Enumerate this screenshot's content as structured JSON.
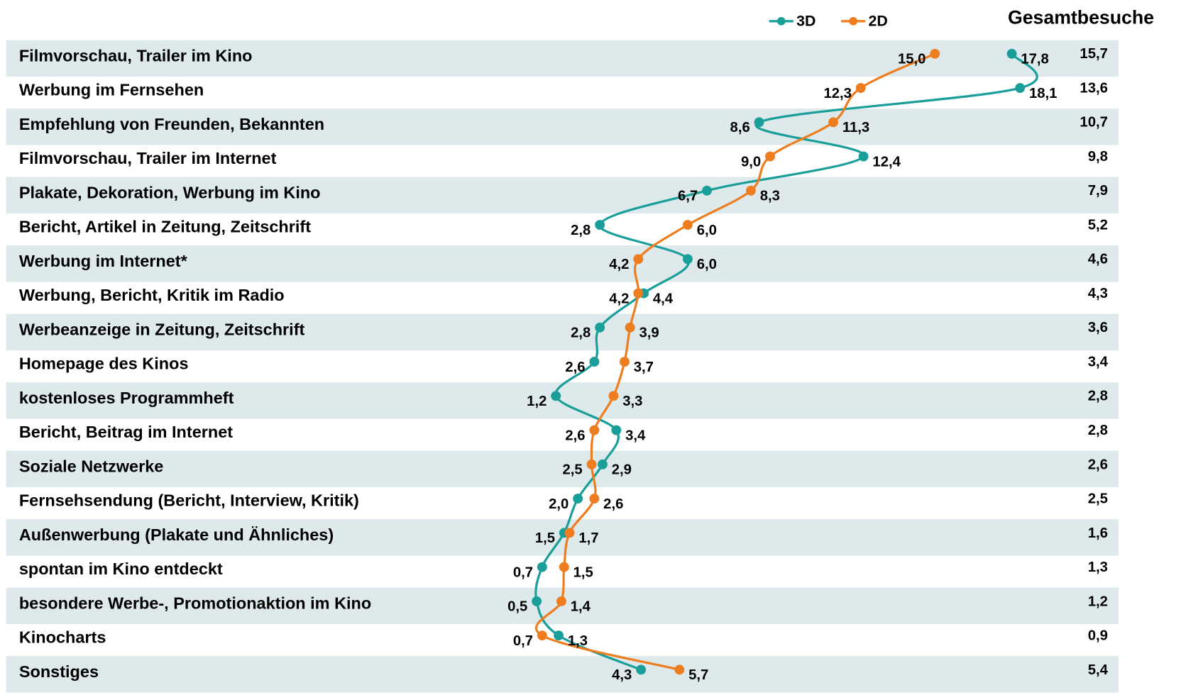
{
  "chart_data": {
    "type": "line",
    "categories": [
      "Filmvorschau, Trailer im Kino",
      "Werbung im Fernsehen",
      "Empfehlung von Freunden, Bekannten",
      "Filmvorschau, Trailer im Internet",
      "Plakate, Dekoration, Werbung im Kino",
      "Bericht, Artikel in Zeitung, Zeitschrift",
      "Werbung im Internet*",
      "Werbung, Bericht, Kritik im Radio",
      "Werbeanzeige in Zeitung, Zeitschrift",
      "Homepage des Kinos",
      "kostenloses Programmheft",
      "Bericht, Beitrag im Internet",
      "Soziale Netzwerke",
      "Fernsehsendung (Bericht, Interview, Kritik)",
      "Außenwerbung (Plakate und Ähnliches)",
      "spontan im Kino entdeckt",
      "besondere Werbe-, Promotionaktion im Kino",
      "Kinocharts",
      "Sonstiges"
    ],
    "series": [
      {
        "name": "3D",
        "color": "#1a9e9a",
        "values": [
          17.8,
          18.1,
          8.6,
          12.4,
          6.7,
          2.8,
          6.0,
          4.4,
          2.8,
          2.6,
          1.2,
          3.4,
          2.9,
          2.0,
          1.5,
          0.7,
          0.5,
          1.3,
          4.3
        ],
        "value_labels": [
          "17,8",
          "18,1",
          "8,6",
          "12,4",
          "6,7",
          "2,8",
          "6,0",
          "4,4",
          "2,8",
          "2,6",
          "1,2",
          "3,4",
          "2,9",
          "2,0",
          "1,5",
          "0,7",
          "0,5",
          "1,3",
          "4,3"
        ]
      },
      {
        "name": "2D",
        "color": "#ed7d1f",
        "values": [
          15.0,
          12.3,
          11.3,
          9.0,
          8.3,
          6.0,
          4.2,
          4.2,
          3.9,
          3.7,
          3.3,
          2.6,
          2.5,
          2.6,
          1.7,
          1.5,
          1.4,
          0.7,
          5.7
        ],
        "value_labels": [
          "15,0",
          "12,3",
          "11,3",
          "9,0",
          "8,3",
          "6,0",
          "4,2",
          "4,2",
          "3,9",
          "3,7",
          "3,3",
          "2,6",
          "2,5",
          "2,6",
          "1,7",
          "1,5",
          "1,4",
          "0,7",
          "5,7"
        ]
      }
    ],
    "totals": {
      "name": "Gesamtbesuche",
      "values": [
        15.7,
        13.6,
        10.7,
        9.8,
        7.9,
        5.2,
        4.6,
        4.3,
        3.6,
        3.4,
        2.8,
        2.8,
        2.6,
        2.5,
        1.6,
        1.3,
        1.2,
        0.9,
        5.4
      ],
      "value_labels": [
        "15,7",
        "13,6",
        "10,7",
        "9,8",
        "7,9",
        "5,2",
        "4,6",
        "4,3",
        "3,6",
        "3,4",
        "2,8",
        "2,8",
        "2,6",
        "2,5",
        "1,6",
        "1,3",
        "1,2",
        "0,9",
        "5,4"
      ]
    },
    "xlim": [
      0,
      20
    ]
  }
}
